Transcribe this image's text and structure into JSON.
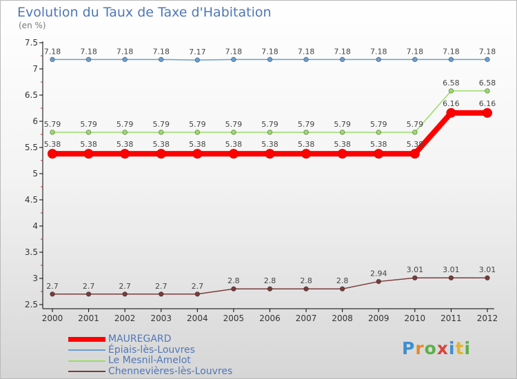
{
  "chart_data": {
    "type": "line",
    "title": "Evolution du Taux de Taxe d'Habitation",
    "ylabel": "(en %)",
    "xlabel": "",
    "ylim": [
      2.5,
      7.5
    ],
    "yticks": [
      "2.5",
      "3",
      "3.5",
      "4",
      "4.5",
      "5",
      "5.5",
      "6",
      "6.5",
      "7",
      "7.5"
    ],
    "categories": [
      "2000",
      "2001",
      "2002",
      "2003",
      "2004",
      "2005",
      "2006",
      "2007",
      "2008",
      "2009",
      "2010",
      "2011",
      "2012"
    ],
    "grid": false,
    "legend_position": "bottom-left",
    "series": [
      {
        "name": "MAUREGARD",
        "color": "#ff0000",
        "values": [
          5.38,
          5.38,
          5.38,
          5.38,
          5.38,
          5.38,
          5.38,
          5.38,
          5.38,
          5.38,
          5.38,
          6.16,
          6.16
        ],
        "labels": [
          "5.38",
          "5.38",
          "5.38",
          "5.38",
          "5.38",
          "5.38",
          "5.38",
          "5.38",
          "5.38",
          "5.38",
          "5.38",
          "6.16",
          "6.16"
        ]
      },
      {
        "name": "Épiais-lès-Louvres",
        "color": "#6a9ed0",
        "values": [
          7.18,
          7.18,
          7.18,
          7.18,
          7.17,
          7.18,
          7.18,
          7.18,
          7.18,
          7.18,
          7.18,
          7.18,
          7.18
        ],
        "labels": [
          "7.18",
          "7.18",
          "7.18",
          "7.18",
          "7.17",
          "7.18",
          "7.18",
          "7.18",
          "7.18",
          "7.18",
          "7.18",
          "7.18",
          "7.18"
        ]
      },
      {
        "name": "Le Mesnil-Amelot",
        "color": "#99dd66",
        "values": [
          5.79,
          5.79,
          5.79,
          5.79,
          5.79,
          5.79,
          5.79,
          5.79,
          5.79,
          5.79,
          5.79,
          6.58,
          6.58
        ],
        "labels": [
          "5.79",
          "5.79",
          "5.79",
          "5.79",
          "5.79",
          "5.79",
          "5.79",
          "5.79",
          "5.79",
          "5.79",
          "5.79",
          "6.58",
          "6.58"
        ]
      },
      {
        "name": "Chennevières-lès-Louvres",
        "color": "#7a3b3b",
        "values": [
          2.7,
          2.7,
          2.7,
          2.7,
          2.7,
          2.8,
          2.8,
          2.8,
          2.8,
          2.94,
          3.01,
          3.01,
          3.01
        ],
        "labels": [
          "2.7",
          "2.7",
          "2.7",
          "2.7",
          "2.7",
          "2.8",
          "2.8",
          "2.8",
          "2.8",
          "2.94",
          "3.01",
          "3.01",
          "3.01"
        ]
      }
    ]
  },
  "logo": {
    "letters": [
      "P",
      "r",
      "o",
      "x",
      "i",
      "t",
      "i"
    ]
  }
}
